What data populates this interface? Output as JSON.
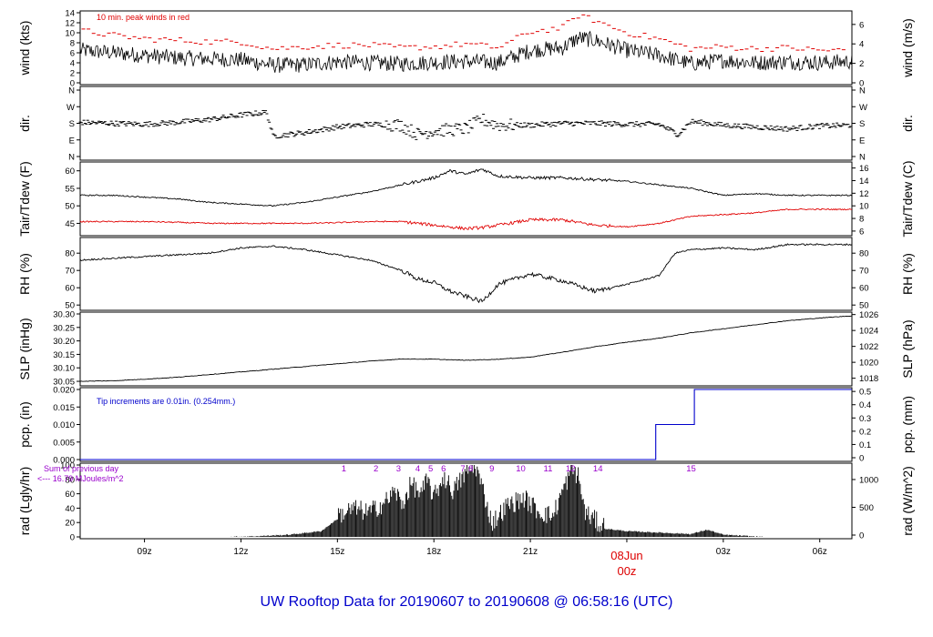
{
  "title": "UW Rooftop Data for 20190607  to  20190608 @ 06:58:16  (UTC)",
  "colors": {
    "title": "#0000cc",
    "peak": "#e00000",
    "dew": "#e00000",
    "precip": "#0000cc",
    "annot": "#9900cc",
    "day": "#dd0000"
  },
  "x_axis": {
    "ticks": [
      {
        "h": 9,
        "label": "09z"
      },
      {
        "h": 12,
        "label": "12z"
      },
      {
        "h": 15,
        "label": "15z"
      },
      {
        "h": 18,
        "label": "18z"
      },
      {
        "h": 21,
        "label": "21z"
      },
      {
        "h": 27,
        "label": "03z"
      },
      {
        "h": 30,
        "label": "06z"
      }
    ],
    "day_label": "08Jun",
    "day_hour_label": "00z",
    "day_hour": 24
  },
  "chart_data": [
    {
      "type": "line",
      "id": "wind",
      "ylabel": "wind (kts)",
      "ylabel_right": "wind (m/s)",
      "ylim": [
        0,
        14
      ],
      "yticks": [
        0,
        2,
        4,
        6,
        8,
        10,
        12,
        14
      ],
      "yticks_right": [
        0,
        2,
        4,
        6
      ],
      "annotation": "10 min. peak winds in red",
      "x_hours": [
        7.0,
        8,
        9,
        10,
        11,
        12,
        13,
        14,
        15,
        16,
        17,
        18,
        19,
        20,
        21,
        22,
        22.5,
        23,
        24,
        25,
        26,
        27,
        28,
        29,
        30,
        31.0
      ],
      "sustained": [
        6.5,
        6.0,
        5.5,
        5.0,
        4.8,
        4.6,
        3.5,
        3.6,
        4.2,
        4.0,
        3.8,
        4.1,
        4.3,
        4.0,
        6.5,
        7.0,
        9.0,
        8.5,
        6.5,
        5.5,
        3.8,
        4.5,
        4.0,
        4.2,
        4.0,
        4.3
      ],
      "peak": [
        10.5,
        9.5,
        8.8,
        8.5,
        8.2,
        8.2,
        6.8,
        7.2,
        7.5,
        7.5,
        7.0,
        7.2,
        7.8,
        7.0,
        10.2,
        11.0,
        13.5,
        12.5,
        10.0,
        8.8,
        6.8,
        7.2,
        6.8,
        7.0,
        6.5,
        6.5
      ]
    },
    {
      "type": "scatter",
      "id": "dir",
      "ylabel": "dir.",
      "ylabel_right": "dir.",
      "yticks": [
        "N",
        "E",
        "S",
        "W",
        "N"
      ],
      "x_hours": [
        7.0,
        8,
        9,
        10,
        11,
        12,
        12.8,
        13.0,
        14,
        15,
        16,
        17,
        17.5,
        18,
        19,
        19.5,
        20,
        21,
        22,
        23,
        24,
        25,
        25.6,
        26,
        27,
        28,
        29,
        30,
        31.0
      ],
      "deg": [
        185,
        180,
        175,
        185,
        200,
        225,
        240,
        110,
        130,
        160,
        175,
        170,
        120,
        140,
        150,
        200,
        170,
        170,
        180,
        180,
        175,
        175,
        120,
        190,
        170,
        160,
        150,
        165,
        170
      ]
    },
    {
      "type": "line",
      "id": "temp",
      "ylabel": "Tair/Tdew (F)",
      "ylabel_right": "Tair/Tdew (C)",
      "ylim": [
        42,
        62
      ],
      "yticks": [
        45,
        50,
        55,
        60
      ],
      "yticks_right": [
        6,
        8,
        10,
        12,
        14,
        16
      ],
      "x_hours": [
        7.0,
        8,
        9,
        10,
        11,
        12,
        13,
        14,
        15,
        16,
        17,
        18,
        18.5,
        19,
        19.5,
        20,
        21,
        22,
        23,
        24,
        25,
        26,
        27,
        28,
        29,
        30,
        31.0
      ],
      "tair": [
        53.0,
        53.0,
        52.5,
        52.0,
        51.0,
        50.5,
        50.0,
        51.0,
        52.5,
        54.0,
        56.0,
        58.0,
        60.0,
        59.0,
        60.5,
        58.5,
        58.0,
        58.0,
        57.5,
        57.0,
        56.0,
        55.0,
        53.0,
        53.5,
        53.0,
        53.0,
        53.0
      ],
      "tdew": [
        45.5,
        45.5,
        45.5,
        45.3,
        45.0,
        45.0,
        45.0,
        45.0,
        45.2,
        45.5,
        45.5,
        44.5,
        44.0,
        43.5,
        43.8,
        44.5,
        46.0,
        46.0,
        44.5,
        44.0,
        45.0,
        47.0,
        47.5,
        48.0,
        49.0,
        49.0,
        49.0
      ]
    },
    {
      "type": "line",
      "id": "rh",
      "ylabel": "RH (%)",
      "ylabel_right": "RH (%)",
      "ylim": [
        48,
        88
      ],
      "yticks": [
        50,
        60,
        70,
        80
      ],
      "yticks_right": [
        50,
        60,
        70,
        80
      ],
      "x_hours": [
        7.0,
        8,
        9,
        10,
        11,
        12,
        13,
        14,
        15,
        16,
        17,
        17.5,
        18,
        18.5,
        19,
        19.5,
        20,
        21,
        22,
        23,
        24,
        25,
        25.5,
        26,
        27,
        28,
        29,
        30,
        31.0
      ],
      "rh": [
        76,
        77,
        78,
        79,
        80,
        83,
        84,
        82,
        79,
        76,
        70,
        65,
        63,
        58,
        55,
        52,
        62,
        68,
        64,
        58,
        62,
        67,
        80,
        82,
        83,
        82,
        85,
        85,
        85
      ]
    },
    {
      "type": "line",
      "id": "slp",
      "ylabel": "SLP (inHg)",
      "ylabel_right": "SLP (hPa)",
      "ylim": [
        30.04,
        30.3
      ],
      "yticks": [
        30.05,
        30.1,
        30.15,
        30.2,
        30.25,
        30.3
      ],
      "yticks_right": [
        1018,
        1020,
        1022,
        1024,
        1026
      ],
      "x_hours": [
        7.0,
        8,
        9,
        10,
        11,
        12,
        13,
        14,
        15,
        16,
        17,
        18,
        19,
        20,
        21,
        22,
        23,
        24,
        25,
        26,
        27,
        28,
        29,
        30,
        31.0
      ],
      "slp": [
        30.05,
        30.052,
        30.058,
        30.065,
        30.075,
        30.085,
        30.095,
        30.105,
        30.115,
        30.125,
        30.133,
        30.132,
        30.128,
        30.132,
        30.14,
        30.158,
        30.178,
        30.195,
        30.21,
        30.23,
        30.245,
        30.26,
        30.275,
        30.285,
        30.293
      ]
    },
    {
      "type": "line",
      "id": "pcp",
      "ylabel": "pcp. (in)",
      "ylabel_right": "pcp. (mm)",
      "ylim": [
        0,
        0.02
      ],
      "yticks": [
        "0.000",
        "0.005",
        "0.010",
        "0.015",
        "0.020"
      ],
      "yticks_right": [
        0,
        0.1,
        0.2,
        0.3,
        0.4,
        0.5
      ],
      "annotation": "Tip increments are 0.01in. (0.254mm.)",
      "x_hours": [
        7.0,
        24.9,
        24.9,
        26.1,
        26.1,
        31.0
      ],
      "pcp": [
        0,
        0,
        0.01,
        0.01,
        0.02,
        0.02
      ]
    },
    {
      "type": "area",
      "id": "rad",
      "ylabel": "rad (Lgly/hr)",
      "ylabel_right": "rad (W/m^2)",
      "ylim": [
        0,
        100
      ],
      "yticks": [
        0,
        20,
        40,
        60,
        80,
        100
      ],
      "yticks_right": [
        0,
        500,
        1000
      ],
      "annotation_line1": "Sum of previous day",
      "annotation_line2": "<--- 16.79 MJoules/m^2",
      "x_hours": [
        7.0,
        11.7,
        12.5,
        13.5,
        14.5,
        15,
        15.5,
        16,
        16.5,
        16.8,
        17,
        17.3,
        17.6,
        17.8,
        18,
        18.3,
        18.6,
        19,
        19.3,
        19.6,
        19.8,
        20.3,
        20.8,
        21.3,
        21.7,
        22.0,
        22.3,
        22.5,
        22.7,
        23.2,
        24,
        25,
        26,
        26.5,
        27,
        28.2,
        31.0
      ],
      "rad": [
        0,
        0,
        1,
        3,
        8,
        25,
        35,
        30,
        45,
        60,
        40,
        70,
        55,
        75,
        50,
        80,
        60,
        85,
        95,
        50,
        15,
        40,
        50,
        30,
        25,
        60,
        90,
        80,
        30,
        12,
        8,
        6,
        4,
        10,
        3,
        0,
        0
      ],
      "tip_markers": [
        {
          "h": 15.2,
          "label": "1"
        },
        {
          "h": 16.2,
          "label": "2"
        },
        {
          "h": 16.9,
          "label": "3"
        },
        {
          "h": 17.5,
          "label": "4"
        },
        {
          "h": 17.9,
          "label": "5"
        },
        {
          "h": 18.3,
          "label": "6"
        },
        {
          "h": 18.9,
          "label": "7"
        },
        {
          "h": 19.15,
          "label": "8"
        },
        {
          "h": 19.8,
          "label": "9"
        },
        {
          "h": 20.7,
          "label": "10"
        },
        {
          "h": 21.55,
          "label": "11"
        },
        {
          "h": 22.25,
          "label": "12"
        },
        {
          "h": 23.1,
          "label": "14"
        },
        {
          "h": 26.0,
          "label": "15"
        }
      ]
    }
  ]
}
